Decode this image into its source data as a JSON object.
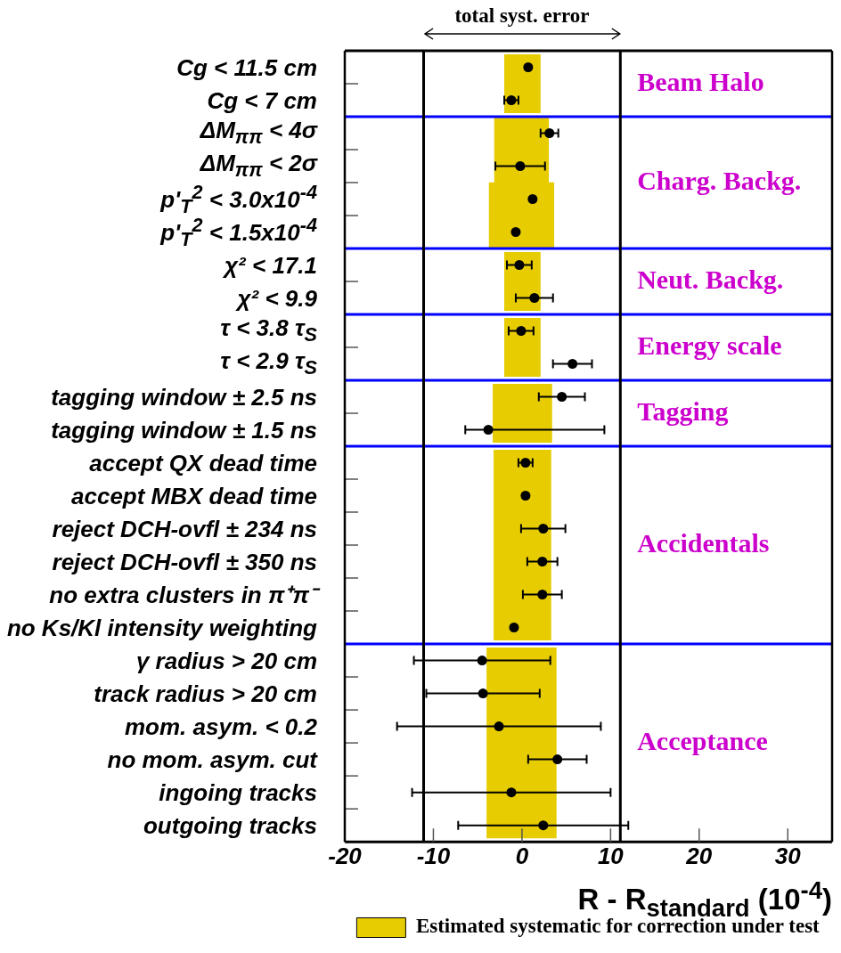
{
  "chart_data": [
    {
      "type": "scatter",
      "orientation": "horizontal",
      "title": "Beam Halo",
      "categories": [
        "Cg < 11.5 cm",
        "Cg < 7 cm"
      ],
      "series": [
        {
          "color": "#000000",
          "values": [
            0.7,
            -1.2
          ],
          "errors": [
            null,
            0.8
          ]
        }
      ],
      "bands": [
        {
          "axis": "x",
          "from": -2.0,
          "to": 2.1,
          "color": "#e6cc00"
        }
      ],
      "xlim": [
        -20,
        35
      ],
      "ref_lines": [
        {
          "axis": "x",
          "value": -11.1,
          "color": "#000000"
        },
        {
          "axis": "x",
          "value": 11.1,
          "color": "#000000"
        }
      ],
      "annotations": [
        "total syst. error"
      ],
      "tick_labels": "y",
      "marker": "circle"
    },
    {
      "type": "bar",
      "orientation": "horizontal",
      "title": "Charg. Backg.",
      "categories": [
        "ΔM$_{ππ}$ < 4σ",
        "ΔM$_{ππ}$ < 2σ",
        "p'$_{T}$$^{2}$ < 3.0x10$^{-4}$",
        "p'$_{T}$$^{2}$ < 1.5x10$^{-4}$"
      ],
      "series": [
        {
          "color": "#e6cc00",
          "base": [
            -3.1,
            -3.1,
            -3.7,
            -3.7
          ],
          "values": [
            6.1,
            6.1,
            7.3,
            7.3
          ]
        },
        {
          "type": "scatter",
          "color": "#000000",
          "values": [
            3.1,
            -0.2,
            1.2,
            -0.7
          ],
          "errors": [
            1.0,
            2.8,
            null,
            null
          ]
        }
      ],
      "xlim": [
        -20,
        35
      ],
      "ref_lines": [
        {
          "axis": "x",
          "value": -11.1,
          "color": "#000000"
        },
        {
          "axis": "x",
          "value": 11.1,
          "color": "#000000"
        }
      ],
      "tick_labels": "y",
      "marker": "circle"
    },
    {
      "type": "scatter",
      "orientation": "horizontal",
      "title": "Neut. Backg.",
      "categories": [
        "χ² < 17.1",
        "χ² < 9.9"
      ],
      "series": [
        {
          "color": "#000000",
          "values": [
            -0.3,
            1.4
          ],
          "errors": [
            1.4,
            2.1
          ]
        }
      ],
      "bands": [
        {
          "axis": "x",
          "from": -2.0,
          "to": 2.1,
          "color": "#e6cc00"
        }
      ],
      "xlim": [
        -20,
        35
      ],
      "ref_lines": [
        {
          "axis": "x",
          "value": -11.1,
          "color": "#000000"
        },
        {
          "axis": "x",
          "value": 11.1,
          "color": "#000000"
        }
      ],
      "tick_labels": "y",
      "marker": "circle"
    },
    {
      "type": "scatter",
      "orientation": "horizontal",
      "title": "Energy scale",
      "categories": [
        "τ < 3.8 τ$_{S}$",
        "τ < 2.9 τ$_{S}$"
      ],
      "series": [
        {
          "color": "#000000",
          "values": [
            -0.1,
            5.7
          ],
          "errors": [
            1.4,
            2.2
          ]
        }
      ],
      "bands": [
        {
          "axis": "x",
          "from": -2.0,
          "to": 2.1,
          "color": "#e6cc00"
        }
      ],
      "xlim": [
        -20,
        35
      ],
      "ref_lines": [
        {
          "axis": "x",
          "value": -11.1,
          "color": "#000000"
        },
        {
          "axis": "x",
          "value": 11.1,
          "color": "#000000"
        }
      ],
      "tick_labels": "y",
      "marker": "circle"
    },
    {
      "type": "scatter",
      "orientation": "horizontal",
      "title": "Tagging",
      "categories": [
        "tagging window ± 2.5 ns",
        "tagging window ± 1.5 ns"
      ],
      "series": [
        {
          "color": "#000000",
          "values": [
            4.5,
            -3.8
          ],
          "errors": [
            2.6,
            [
              -6.4,
              9.3
            ]
          ]
        }
      ],
      "bands": [
        {
          "axis": "x",
          "from": -3.3,
          "to": 3.4,
          "color": "#e6cc00"
        }
      ],
      "xlim": [
        -20,
        35
      ],
      "ref_lines": [
        {
          "axis": "x",
          "value": -11.1,
          "color": "#000000"
        },
        {
          "axis": "x",
          "value": 11.1,
          "color": "#000000"
        }
      ],
      "tick_labels": "y",
      "marker": "circle"
    },
    {
      "type": "scatter",
      "orientation": "horizontal",
      "title": "Accidentals",
      "categories": [
        "accept QX dead time",
        "accept MBX dead time",
        "reject DCH-ovfl ± 234 ns",
        "reject DCH-ovfl ± 350 ns",
        "no extra clusters in π⁺π⁻",
        "no Ks/Kl intensity weighting"
      ],
      "series": [
        {
          "color": "#000000",
          "values": [
            0.4,
            0.4,
            2.4,
            2.3,
            2.3,
            -0.9
          ],
          "errors": [
            0.8,
            null,
            2.5,
            1.7,
            2.2,
            null
          ]
        }
      ],
      "bands": [
        {
          "axis": "x",
          "from": -3.2,
          "to": 3.3,
          "color": "#e6cc00"
        }
      ],
      "xlim": [
        -20,
        35
      ],
      "ref_lines": [
        {
          "axis": "x",
          "value": -11.1,
          "color": "#000000"
        },
        {
          "axis": "x",
          "value": 11.1,
          "color": "#000000"
        }
      ],
      "tick_labels": "y",
      "marker": "circle"
    },
    {
      "type": "scatter",
      "orientation": "horizontal",
      "title": "Acceptance",
      "categories": [
        "γ radius > 20 cm",
        "track radius > 20 cm",
        "mom. asym. < 0.2",
        "no mom. asym. cut",
        "ingoing tracks",
        "outgoing tracks"
      ],
      "series": [
        {
          "color": "#000000",
          "values": [
            -4.5,
            -4.4,
            -2.6,
            4.0,
            -1.2,
            2.4
          ],
          "errors": [
            7.7,
            6.4,
            11.5,
            3.3,
            11.2,
            9.6
          ]
        }
      ],
      "bands": [
        {
          "axis": "x",
          "from": -4.0,
          "to": 3.9,
          "color": "#e6cc00",
          "label": "Estimated systematic for correction under test"
        }
      ],
      "xlim": [
        -20,
        35
      ],
      "xticks": [
        -20,
        -10,
        0,
        10,
        20,
        30
      ],
      "xlabel": "R - R$_{standard}$ (10$^{-4}$)",
      "ref_lines": [
        {
          "axis": "x",
          "value": -11.1,
          "color": "#000000"
        },
        {
          "axis": "x",
          "value": 11.1,
          "color": "#000000"
        }
      ],
      "legend": "bottom",
      "marker": "circle"
    }
  ]
}
